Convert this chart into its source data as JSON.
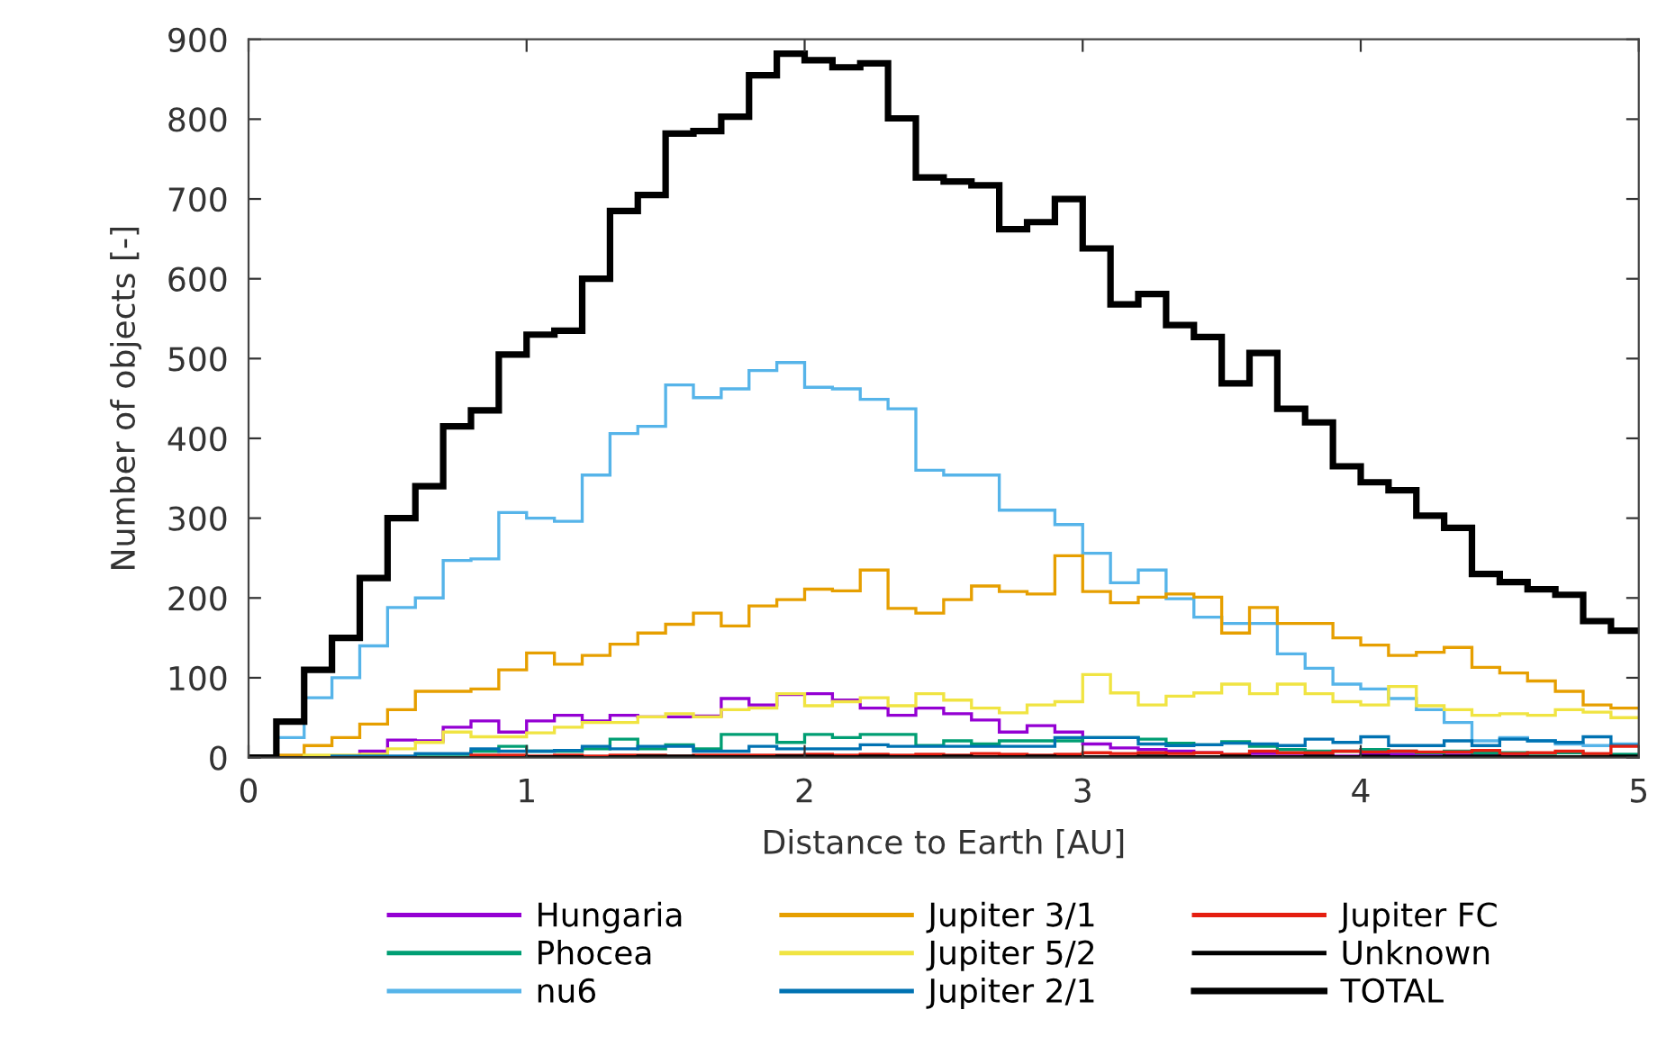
{
  "chart_data": {
    "type": "histogram",
    "xlabel": "Distance to Earth [AU]",
    "ylabel": "Number of objects [-]",
    "bins": [
      0,
      0.1,
      0.2,
      0.3,
      0.4,
      0.5,
      0.6,
      0.7,
      0.8,
      0.9,
      1,
      1.1,
      1.2,
      1.3,
      1.4,
      1.5,
      1.6,
      1.7,
      1.8,
      1.9,
      2,
      2.1,
      2.2,
      2.3,
      2.4,
      2.5,
      2.6,
      2.7,
      2.8,
      2.9,
      3,
      3.1,
      3.2,
      3.3,
      3.4,
      3.5,
      3.6,
      3.7,
      3.8,
      3.9,
      4,
      4.1,
      4.2,
      4.3,
      4.4,
      4.5,
      4.6,
      4.7,
      4.8,
      4.9,
      5
    ],
    "series": [
      {
        "name": "Hungaria",
        "color": "#9400d3",
        "values": [
          0,
          0,
          0,
          2,
          8,
          22,
          21,
          38,
          46,
          32,
          46,
          53,
          46,
          53,
          51,
          51,
          52,
          74,
          66,
          79,
          80,
          72,
          62,
          53,
          62,
          55,
          47,
          32,
          40,
          32,
          17,
          12,
          10,
          8,
          6,
          3,
          5,
          5,
          2,
          2,
          4,
          4,
          3,
          3,
          2,
          2,
          1,
          1,
          1,
          1
        ]
      },
      {
        "name": "Phocea",
        "color": "#009e73",
        "values": [
          0,
          0,
          0,
          0,
          0,
          0,
          4,
          4,
          8,
          14,
          8,
          8,
          11,
          23,
          11,
          16,
          11,
          29,
          29,
          19,
          29,
          25,
          29,
          29,
          15,
          21,
          17,
          21,
          21,
          21,
          25,
          25,
          23,
          18,
          16,
          20,
          14,
          10,
          8,
          8,
          10,
          8,
          6,
          8,
          6,
          6,
          5,
          6,
          4,
          4
        ]
      },
      {
        "name": "nu6",
        "color": "#56b4e9",
        "values": [
          0,
          25,
          75,
          100,
          140,
          188,
          200,
          247,
          249,
          307,
          300,
          296,
          354,
          406,
          415,
          467,
          451,
          462,
          485,
          495,
          464,
          462,
          449,
          437,
          360,
          354,
          354,
          310,
          310,
          292,
          256,
          219,
          235,
          199,
          176,
          168,
          168,
          130,
          112,
          92,
          86,
          74,
          60,
          44,
          21,
          25,
          21,
          17,
          15,
          17
        ]
      },
      {
        "name": "Jupiter 3/1",
        "color": "#e69f00",
        "values": [
          0,
          3,
          15,
          25,
          42,
          60,
          83,
          83,
          86,
          110,
          131,
          117,
          128,
          142,
          156,
          167,
          181,
          165,
          190,
          198,
          211,
          209,
          235,
          187,
          181,
          198,
          215,
          208,
          205,
          253,
          208,
          194,
          201,
          205,
          201,
          156,
          188,
          168,
          168,
          150,
          141,
          128,
          132,
          138,
          113,
          106,
          96,
          83,
          66,
          62
        ]
      },
      {
        "name": "Jupiter 5/2",
        "color": "#f0e442",
        "values": [
          0,
          0,
          3,
          3,
          4,
          11,
          19,
          32,
          26,
          26,
          31,
          38,
          44,
          44,
          51,
          55,
          51,
          60,
          62,
          80,
          65,
          70,
          75,
          65,
          80,
          72,
          62,
          56,
          66,
          70,
          104,
          81,
          66,
          77,
          81,
          92,
          80,
          92,
          80,
          70,
          66,
          89,
          65,
          60,
          53,
          55,
          53,
          60,
          57,
          50
        ]
      },
      {
        "name": "Jupiter 2/1",
        "color": "#0072b2",
        "values": [
          0,
          0,
          0,
          2,
          2,
          2,
          5,
          5,
          11,
          8,
          8,
          9,
          14,
          11,
          14,
          14,
          8,
          8,
          14,
          11,
          11,
          11,
          16,
          14,
          14,
          14,
          14,
          14,
          14,
          25,
          25,
          25,
          17,
          15,
          16,
          18,
          17,
          15,
          23,
          19,
          26,
          15,
          15,
          21,
          15,
          23,
          21,
          19,
          26,
          15
        ]
      },
      {
        "name": "Jupiter FC",
        "color": "#e51e10",
        "values": [
          0,
          0,
          0,
          0,
          0,
          0,
          0,
          0,
          3,
          3,
          2,
          3,
          2,
          3,
          3,
          2,
          3,
          3,
          3,
          3,
          4,
          3,
          4,
          3,
          4,
          3,
          5,
          4,
          3,
          4,
          6,
          5,
          6,
          5,
          6,
          4,
          8,
          6,
          6,
          8,
          7,
          8,
          7,
          7,
          9,
          5,
          6,
          8,
          5,
          14
        ]
      },
      {
        "name": "Unknown",
        "color": "#000000",
        "values": [
          0,
          0,
          0,
          0,
          0,
          0,
          0,
          0,
          0,
          0,
          1,
          1,
          0,
          1,
          2,
          2,
          1,
          1,
          1,
          2,
          2,
          1,
          2,
          1,
          1,
          2,
          1,
          1,
          2,
          1,
          1,
          1,
          2,
          1,
          1,
          2,
          1,
          1,
          2,
          1,
          2,
          1,
          1,
          2,
          2,
          1,
          1,
          1,
          1,
          2
        ]
      },
      {
        "name": "TOTAL",
        "color": "#000000",
        "values": [
          0,
          45,
          110,
          150,
          225,
          300,
          340,
          415,
          435,
          505,
          530,
          535,
          600,
          685,
          705,
          782,
          785,
          803,
          855,
          882,
          874,
          865,
          870,
          801,
          727,
          722,
          717,
          662,
          671,
          700,
          638,
          568,
          581,
          542,
          527,
          469,
          507,
          437,
          420,
          365,
          345,
          335,
          303,
          288,
          230,
          220,
          211,
          204,
          171,
          159
        ]
      }
    ],
    "xlim": [
      0,
      5
    ],
    "xticks": [
      0,
      1,
      2,
      3,
      4,
      5
    ],
    "ylim": [
      0,
      900
    ],
    "yticks": [
      0,
      100,
      200,
      300,
      400,
      500,
      600,
      700,
      800,
      900
    ],
    "grid": false,
    "legend": "bottom"
  }
}
